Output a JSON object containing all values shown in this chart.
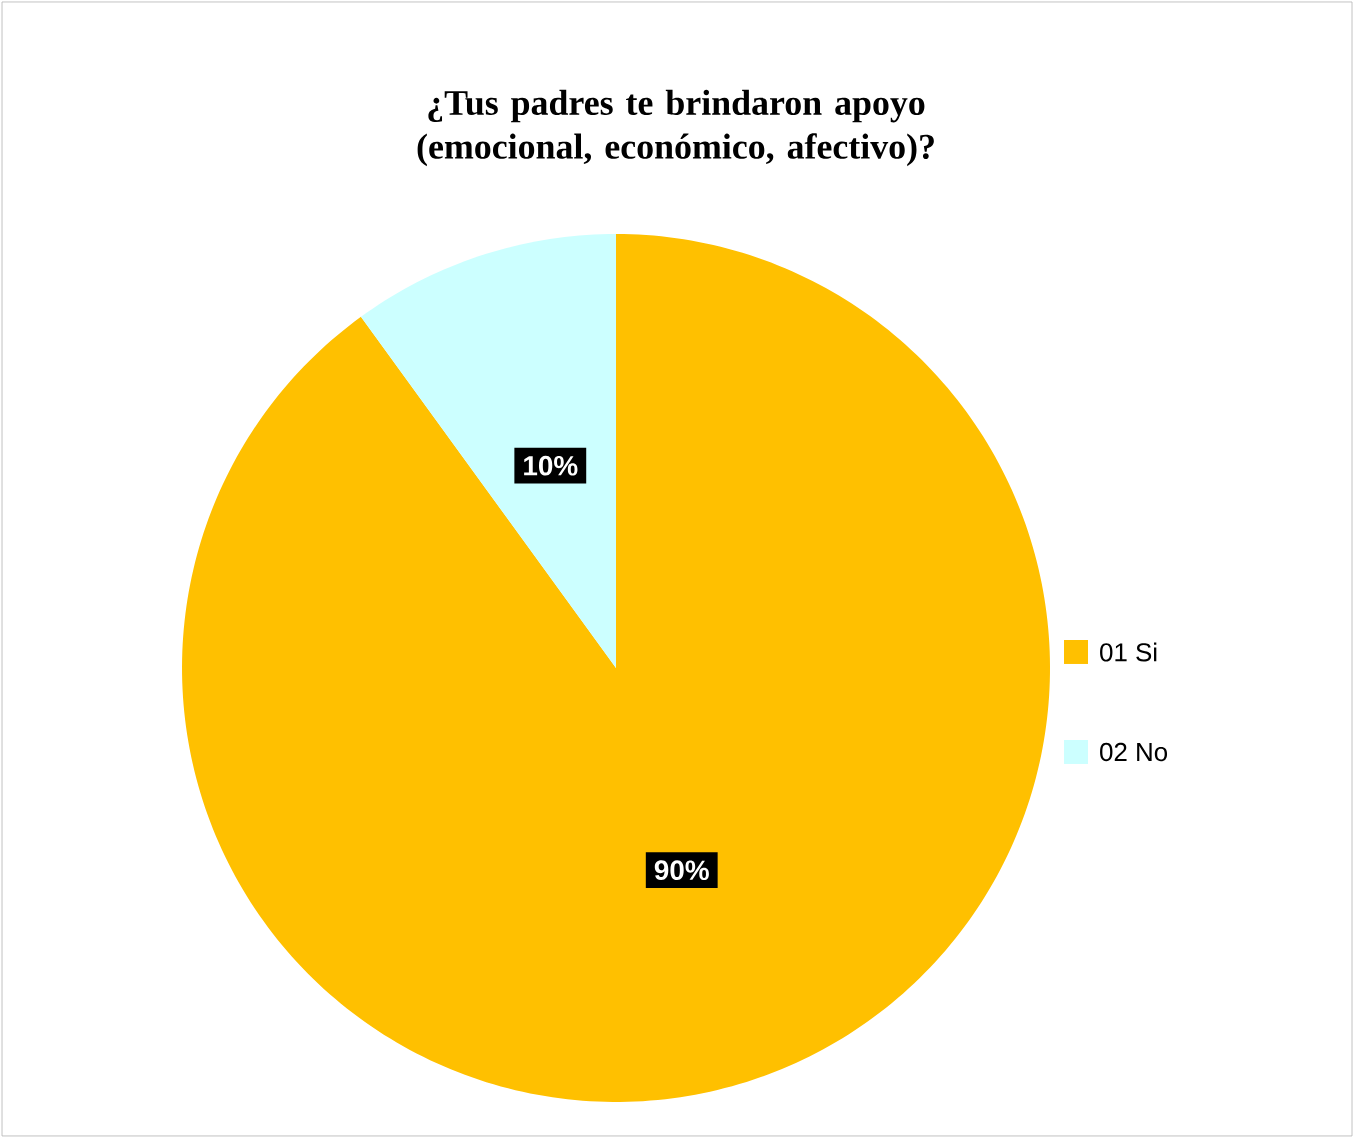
{
  "chart_data": {
    "type": "pie",
    "title": "¿Tus padres te brindaron apoyo (emocional, económico, afectivo)?",
    "categories": [
      "01 Si",
      "02 No"
    ],
    "values": [
      90,
      10
    ],
    "colors": [
      "#ffc000",
      "#ccffff"
    ],
    "value_labels": [
      "90%",
      "10%"
    ],
    "legend": "right"
  }
}
